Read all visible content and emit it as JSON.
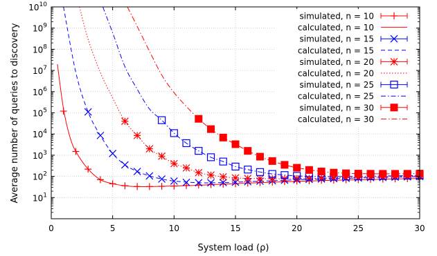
{
  "chart_data": {
    "type": "line",
    "xlabel": "System load (ρ)",
    "ylabel": "Average number of queries to discovery",
    "xlim": [
      0,
      30
    ],
    "ylim_log10": [
      0,
      10
    ],
    "y_scale": "log",
    "grid": true,
    "legend_position": "top-right",
    "x_ticks": [
      "0",
      "5",
      "10",
      "15",
      "20",
      "25",
      "30"
    ],
    "y_ticks": [
      {
        "base": "10",
        "exp": "1"
      },
      {
        "base": "10",
        "exp": "2"
      },
      {
        "base": "10",
        "exp": "3"
      },
      {
        "base": "10",
        "exp": "4"
      },
      {
        "base": "10",
        "exp": "5"
      },
      {
        "base": "10",
        "exp": "6"
      },
      {
        "base": "10",
        "exp": "7"
      },
      {
        "base": "10",
        "exp": "8"
      },
      {
        "base": "10",
        "exp": "9"
      },
      {
        "base": "10",
        "exp": "10"
      }
    ],
    "simulated": [
      {
        "name": "simulated, n = 10",
        "color": "#ff0000",
        "marker": "plus",
        "x": [
          1,
          2,
          3,
          4,
          5,
          6,
          7,
          8,
          9,
          10,
          11,
          12,
          13,
          14,
          15,
          16,
          17,
          18,
          19,
          20,
          21,
          22,
          23,
          24,
          25,
          26,
          27,
          28,
          29,
          30
        ],
        "y": [
          120000,
          1500,
          220,
          70,
          45,
          36,
          33,
          33,
          34,
          35,
          37,
          39,
          41,
          43,
          45,
          48,
          51,
          54,
          57,
          60,
          62,
          65,
          67,
          69,
          71,
          73,
          74,
          76,
          78,
          80
        ]
      },
      {
        "name": "simulated, n = 15",
        "color": "#0000ff",
        "marker": "cross",
        "x": [
          3,
          4,
          5,
          6,
          7,
          8,
          9,
          10,
          11,
          12,
          13,
          14,
          15,
          16,
          17,
          18,
          19,
          20,
          21,
          22,
          23,
          24,
          25,
          26,
          27,
          28,
          29,
          30
        ],
        "y": [
          110000,
          8500,
          1200,
          350,
          170,
          105,
          75,
          60,
          52,
          50,
          50,
          51,
          53,
          56,
          59,
          62,
          66,
          69,
          72,
          75,
          78,
          81,
          84,
          87,
          89,
          92,
          95,
          98
        ]
      },
      {
        "name": "simulated, n = 20",
        "color": "#ff0000",
        "marker": "star",
        "x": [
          6,
          7,
          8,
          9,
          10,
          11,
          12,
          13,
          14,
          15,
          16,
          17,
          18,
          19,
          20,
          21,
          22,
          23,
          24,
          25,
          26,
          27,
          28,
          29,
          30
        ],
        "y": [
          40000,
          8500,
          2000,
          900,
          400,
          250,
          150,
          115,
          95,
          85,
          80,
          78,
          77,
          77,
          78,
          80,
          82,
          84,
          87,
          90,
          93,
          96,
          99,
          102,
          105
        ]
      },
      {
        "name": "simulated, n = 25",
        "color": "#0000ff",
        "marker": "square",
        "x": [
          9,
          10,
          11,
          12,
          13,
          14,
          15,
          16,
          17,
          18,
          19,
          20,
          21,
          22,
          23,
          24,
          25,
          26,
          27,
          28,
          29,
          30
        ],
        "y": [
          45000,
          11000,
          3700,
          1600,
          800,
          500,
          290,
          210,
          160,
          130,
          115,
          105,
          100,
          98,
          98,
          99,
          100,
          102,
          104,
          106,
          108,
          110
        ]
      },
      {
        "name": "simulated, n = 30",
        "color": "#ff0000",
        "marker": "filled-square",
        "x": [
          12,
          13,
          14,
          15,
          16,
          17,
          18,
          19,
          20,
          21,
          22,
          23,
          24,
          25,
          26,
          27,
          28,
          29,
          30
        ],
        "y": [
          52000,
          17000,
          6800,
          3300,
          1600,
          850,
          530,
          350,
          255,
          200,
          170,
          150,
          140,
          135,
          133,
          132,
          132,
          133,
          135
        ]
      }
    ],
    "calculated": [
      {
        "name": "calculated, n = 10",
        "color": "#ff0000",
        "dash": "none",
        "x": [
          0.5,
          1,
          1.5,
          2,
          3,
          4,
          5,
          6,
          7,
          8,
          9,
          10,
          12,
          14,
          16,
          18,
          20,
          22,
          24,
          26,
          28,
          30
        ],
        "y": [
          20000000,
          150000,
          8000,
          1500,
          220,
          70,
          45,
          36,
          33,
          33,
          34,
          35,
          38,
          43,
          48,
          53,
          58,
          63,
          67,
          71,
          75,
          80
        ]
      },
      {
        "name": "calculated, n = 15",
        "color": "#0000ff",
        "dash": "6,4",
        "x": [
          1,
          2,
          3,
          4,
          5,
          6,
          7,
          8,
          9,
          10,
          12,
          14,
          16,
          18,
          20,
          22,
          24,
          26,
          28,
          30
        ],
        "y": [
          10000000000,
          8000000,
          110000,
          8500,
          1200,
          350,
          170,
          105,
          75,
          60,
          50,
          51,
          56,
          62,
          69,
          75,
          81,
          87,
          92,
          98
        ]
      },
      {
        "name": "calculated, n = 20",
        "color": "#ff0000",
        "dash": "1.5,2.5",
        "x": [
          2.3,
          3,
          4,
          5,
          6,
          7,
          8,
          9,
          10,
          11,
          12,
          13,
          14,
          15,
          16,
          18,
          20,
          22,
          24,
          26,
          28,
          30
        ],
        "y": [
          10000000000,
          300000000,
          8000000,
          500000,
          40000,
          8500,
          2000,
          900,
          400,
          250,
          150,
          115,
          95,
          85,
          80,
          77,
          78,
          82,
          87,
          93,
          99,
          105
        ]
      },
      {
        "name": "calculated, n = 25",
        "color": "#0000ff",
        "dash": "7,3,1.5,3",
        "x": [
          4.2,
          5,
          6,
          7,
          8,
          9,
          10,
          11,
          12,
          13,
          14,
          15,
          16,
          17,
          18,
          20,
          22,
          24,
          26,
          28,
          30
        ],
        "y": [
          10000000000,
          600000000,
          15000000,
          1300000,
          150000,
          45000,
          11000,
          3700,
          1600,
          800,
          500,
          290,
          210,
          160,
          130,
          105,
          98,
          99,
          102,
          106,
          110
        ]
      },
      {
        "name": "calculated, n = 30",
        "color": "#ff0000",
        "dash": "8,3,1.5,3",
        "x": [
          6.2,
          7,
          8,
          9,
          10,
          11,
          12,
          13,
          14,
          15,
          16,
          17,
          18,
          19,
          20,
          22,
          24,
          26,
          28,
          30
        ],
        "y": [
          10000000000,
          1200000000,
          80000000,
          6000000,
          900000,
          200000,
          52000,
          17000,
          6800,
          3300,
          1600,
          850,
          530,
          350,
          255,
          170,
          140,
          133,
          132,
          135
        ]
      }
    ],
    "legend": [
      {
        "label": "simulated, n = 10",
        "color": "#ff0000",
        "kind": "sim",
        "marker": "plus"
      },
      {
        "label": "calculated, n = 10",
        "color": "#ff0000",
        "kind": "calc",
        "dash": "none"
      },
      {
        "label": "simulated, n = 15",
        "color": "#0000ff",
        "kind": "sim",
        "marker": "cross"
      },
      {
        "label": "calculated, n = 15",
        "color": "#0000ff",
        "kind": "calc",
        "dash": "6,4"
      },
      {
        "label": "simulated, n = 20",
        "color": "#ff0000",
        "kind": "sim",
        "marker": "star"
      },
      {
        "label": "calculated, n = 20",
        "color": "#ff0000",
        "kind": "calc",
        "dash": "1.5,2.5"
      },
      {
        "label": "simulated, n = 25",
        "color": "#0000ff",
        "kind": "sim",
        "marker": "square"
      },
      {
        "label": "calculated, n = 25",
        "color": "#0000ff",
        "kind": "calc",
        "dash": "7,3,1.5,3"
      },
      {
        "label": "simulated, n = 30",
        "color": "#ff0000",
        "kind": "sim",
        "marker": "filled-square"
      },
      {
        "label": "calculated, n = 30",
        "color": "#ff0000",
        "kind": "calc",
        "dash": "8,3,1.5,3"
      }
    ]
  }
}
